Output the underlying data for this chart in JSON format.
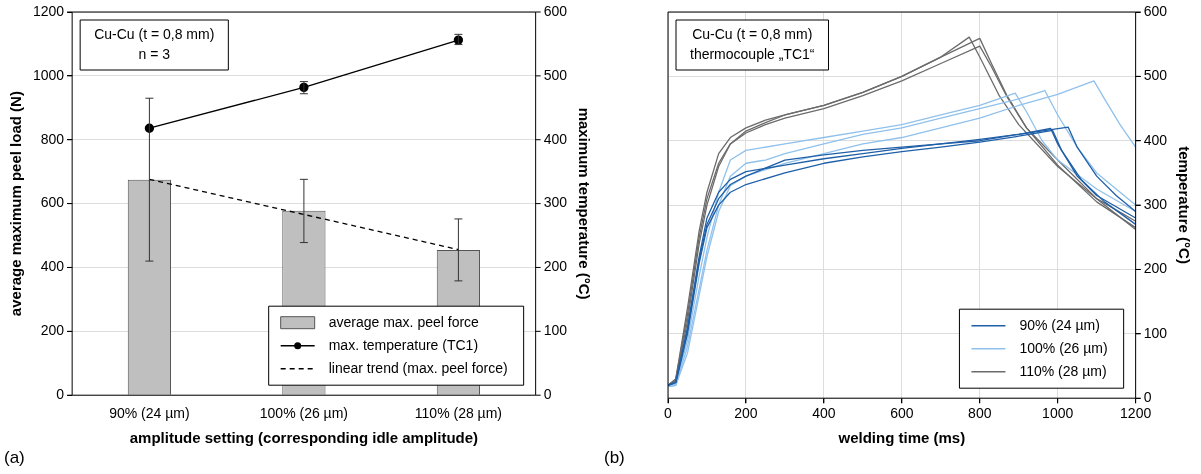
{
  "chart_data": [
    {
      "type": "bar",
      "categories": [
        "90% (24 µm)",
        "100% (26 µm)",
        "110% (28 µm)"
      ],
      "series": [
        {
          "name": "average max. peel force",
          "color": "#bfbfbf",
          "values": [
            675,
            578,
            455
          ],
          "errors": [
            [
              420,
              930
            ],
            [
              478,
              676
            ],
            [
              358,
              552
            ]
          ]
        },
        {
          "name": "max. temperature (TC1)",
          "type": "line",
          "color": "#000000",
          "axis": "y2",
          "marker": "circle",
          "line_style": "solid",
          "values": [
            418,
            482,
            556
          ],
          "errors": [
            null,
            [
              472,
              491
            ],
            [
              549,
              565
            ]
          ]
        },
        {
          "name": "linear trend (max. peel force)",
          "type": "line",
          "color": "#000000",
          "marker": "none",
          "line_style": "dashed",
          "values": [
            676,
            566,
            456
          ]
        }
      ],
      "xlabel": "amplitude setting (corresponding idle amplitude)",
      "ylabel": "average maximum peel load (N)",
      "y2label": "maximum temperature (°C)",
      "ylim": [
        0,
        1200
      ],
      "yticks": [
        0,
        200,
        400,
        600,
        800,
        1000,
        1200
      ],
      "y2lim": [
        0,
        600
      ],
      "y2ticks": [
        0,
        100,
        200,
        300,
        400,
        500,
        600
      ],
      "grid": "y",
      "legend": "bottom right",
      "annotations": [
        "Cu-Cu (t = 0,8 mm)\nn = 3",
        "(a)"
      ]
    },
    {
      "type": "line",
      "marker": "none",
      "series": [
        {
          "name": "90% (24 µm)",
          "color": "#1f5fa8",
          "axis": "y2",
          "x": [
            0,
            20,
            50,
            80,
            100,
            130,
            160,
            200,
            300,
            400,
            500,
            600,
            700,
            800,
            900,
            982,
            1000,
            1050,
            1100,
            1200
          ],
          "values": [
            20,
            25,
            110,
            220,
            280,
            320,
            340,
            352,
            362,
            372,
            380,
            388,
            395,
            402,
            410,
            419,
            395,
            345,
            315,
            280
          ]
        },
        {
          "color": "#1f5fa8",
          "axis": "y2",
          "x": [
            0,
            20,
            50,
            80,
            100,
            130,
            160,
            200,
            300,
            400,
            500,
            600,
            700,
            800,
            900,
            987,
            1010,
            1060,
            1120,
            1200
          ],
          "values": [
            20,
            24,
            100,
            210,
            265,
            300,
            320,
            332,
            350,
            365,
            375,
            383,
            390,
            398,
            407,
            416,
            385,
            340,
            305,
            270
          ]
        },
        {
          "color": "#1f5fa8",
          "axis": "y2",
          "x": [
            0,
            20,
            50,
            80,
            100,
            130,
            160,
            200,
            300,
            400,
            500,
            600,
            700,
            800,
            900,
            1027,
            1050,
            1100,
            1150,
            1200
          ],
          "values": [
            20,
            25,
            105,
            215,
            270,
            310,
            332,
            345,
            370,
            378,
            385,
            390,
            395,
            400,
            410,
            421,
            390,
            345,
            315,
            290
          ]
        },
        {
          "name": "100% (26 µm)",
          "color": "#8fc1ec",
          "axis": "y2",
          "x": [
            0,
            20,
            50,
            80,
            100,
            130,
            160,
            200,
            300,
            400,
            500,
            600,
            700,
            800,
            891,
            920,
            960,
            1000,
            1100,
            1200
          ],
          "values": [
            20,
            22,
            90,
            190,
            250,
            320,
            370,
            385,
            395,
            405,
            415,
            425,
            440,
            455,
            474,
            445,
            400,
            370,
            325,
            290
          ]
        },
        {
          "color": "#8fc1ec",
          "axis": "y2",
          "x": [
            0,
            20,
            50,
            80,
            100,
            130,
            160,
            200,
            250,
            300,
            400,
            500,
            600,
            700,
            800,
            900,
            967,
            1000,
            1050,
            1100,
            1200
          ],
          "values": [
            18,
            20,
            80,
            170,
            230,
            300,
            345,
            365,
            370,
            380,
            395,
            410,
            420,
            435,
            450,
            465,
            478,
            440,
            390,
            350,
            300
          ]
        },
        {
          "color": "#8fc1ec",
          "axis": "y2",
          "x": [
            0,
            20,
            50,
            80,
            100,
            130,
            160,
            200,
            300,
            400,
            500,
            600,
            700,
            800,
            900,
            1000,
            1093,
            1120,
            1160,
            1200
          ],
          "values": [
            18,
            20,
            70,
            160,
            220,
            290,
            330,
            345,
            365,
            380,
            395,
            405,
            420,
            435,
            455,
            472,
            493,
            465,
            425,
            390
          ]
        },
        {
          "name": "110% (28 µm)",
          "color": "#6b6b6b",
          "axis": "y2",
          "x": [
            0,
            20,
            50,
            80,
            100,
            130,
            160,
            200,
            250,
            300,
            400,
            500,
            600,
            700,
            773,
            800,
            850,
            900,
            1000,
            1100,
            1200
          ],
          "values": [
            20,
            30,
            140,
            260,
            320,
            380,
            405,
            420,
            432,
            440,
            455,
            475,
            500,
            530,
            561,
            530,
            470,
            425,
            360,
            310,
            275
          ]
        },
        {
          "color": "#6b6b6b",
          "axis": "y2",
          "x": [
            0,
            20,
            50,
            80,
            100,
            130,
            160,
            200,
            250,
            300,
            400,
            500,
            600,
            700,
            800,
            830,
            870,
            920,
            1000,
            1100,
            1200
          ],
          "values": [
            20,
            28,
            120,
            240,
            300,
            360,
            395,
            415,
            428,
            440,
            455,
            475,
            500,
            530,
            559,
            520,
            470,
            420,
            370,
            310,
            262
          ]
        },
        {
          "color": "#6b6b6b",
          "axis": "y2",
          "x": [
            0,
            20,
            50,
            80,
            100,
            130,
            160,
            200,
            250,
            300,
            400,
            500,
            600,
            700,
            800,
            830,
            870,
            920,
            1000,
            1100,
            1200
          ],
          "values": [
            20,
            30,
            130,
            250,
            310,
            365,
            395,
            412,
            425,
            435,
            450,
            470,
            493,
            520,
            547,
            515,
            468,
            420,
            362,
            305,
            265
          ]
        }
      ],
      "xlabel": "welding time (ms)",
      "y2label": "temperature (°C)",
      "xlim": [
        0,
        1200
      ],
      "xticks": [
        0,
        200,
        400,
        600,
        800,
        1000,
        1200
      ],
      "y2lim": [
        0,
        600
      ],
      "y2ticks": [
        0,
        100,
        200,
        300,
        400,
        500,
        600
      ],
      "grid": true,
      "legend": "bottom right",
      "annotations": [
        "Cu-Cu (t = 0,8 mm)\nthermocouple „TC1“",
        "(b)"
      ]
    }
  ]
}
